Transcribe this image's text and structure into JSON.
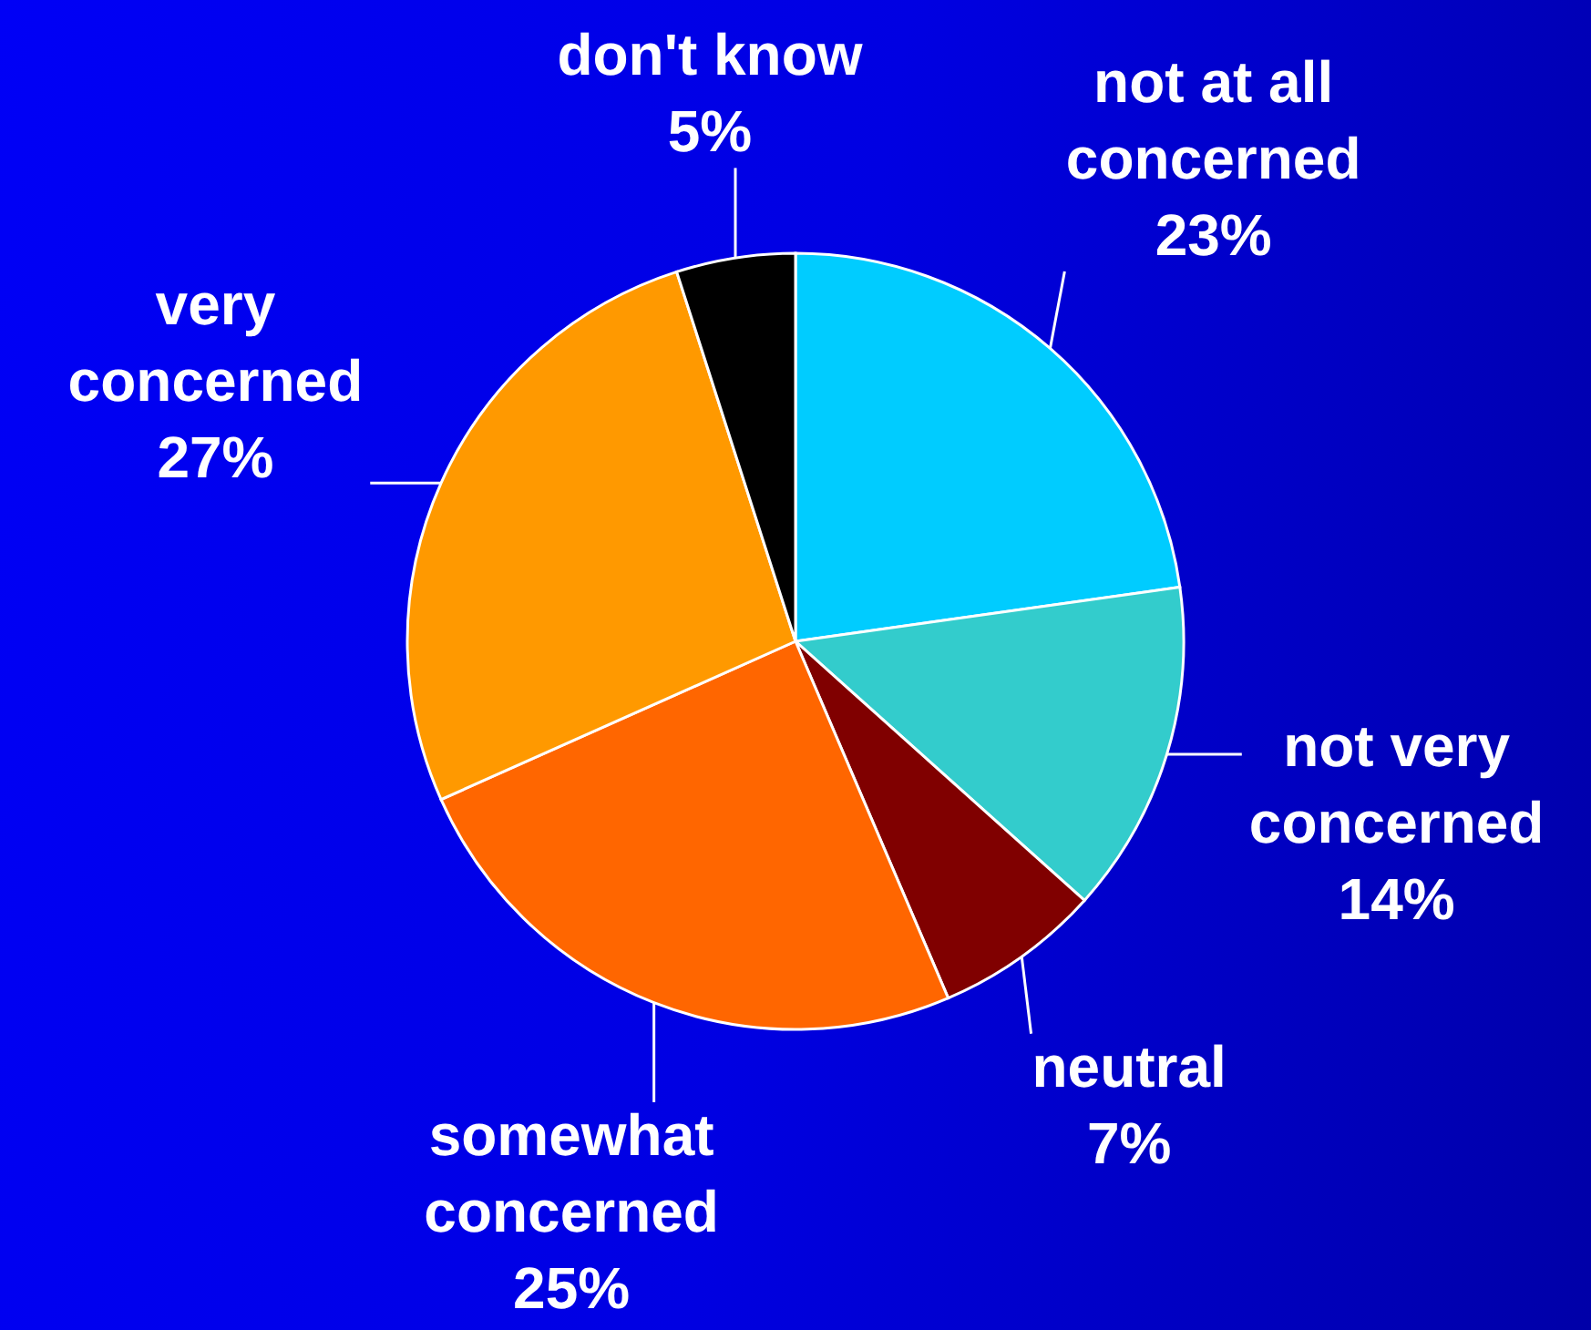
{
  "chart_data": {
    "type": "pie",
    "categories": [
      "not at all concerned",
      "not very concerned",
      "neutral",
      "somewhat concerned",
      "very concerned",
      "don't know"
    ],
    "values": [
      23,
      14,
      7,
      25,
      27,
      5
    ],
    "value_labels": [
      "23%",
      "14%",
      "7%",
      "25%",
      "27%",
      "5%"
    ],
    "colors": [
      "#00ccff",
      "#33cccc",
      "#800000",
      "#ff6600",
      "#ff9900",
      "#000000"
    ]
  }
}
